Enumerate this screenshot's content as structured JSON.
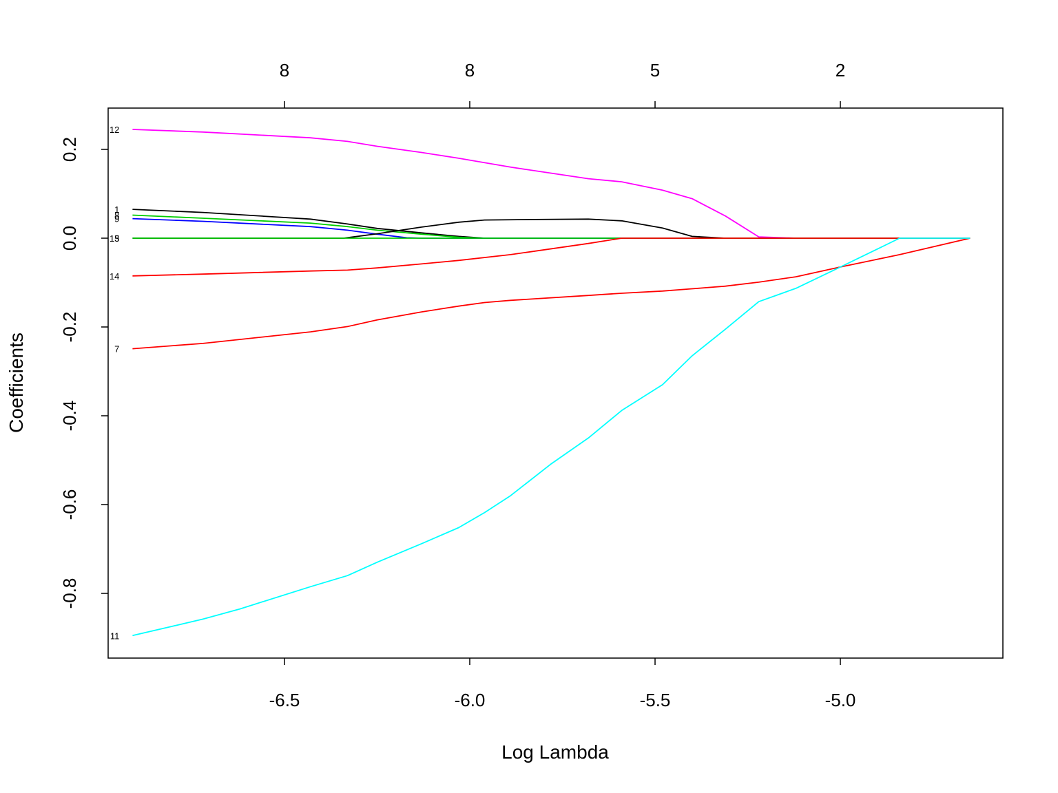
{
  "chart_data": {
    "type": "line",
    "title": "",
    "xlabel": "Log Lambda",
    "ylabel": "Coefficients",
    "xlim": [
      -6.93,
      -4.52
    ],
    "ylim": [
      -0.945,
      0.29
    ],
    "grid": false,
    "legend": "none",
    "xticks": [
      {
        "value": -6.5,
        "label": "-6.5"
      },
      {
        "value": -6.0,
        "label": "-6.0"
      },
      {
        "value": -5.5,
        "label": "-5.5"
      },
      {
        "value": -5.0,
        "label": "-5.0"
      }
    ],
    "yticks": [
      {
        "value": 0.2,
        "label": "0.2"
      },
      {
        "value": 0.0,
        "label": "0.0"
      },
      {
        "value": -0.2,
        "label": "-0.2"
      },
      {
        "value": -0.4,
        "label": "-0.4"
      },
      {
        "value": -0.6,
        "label": "-0.6"
      },
      {
        "value": -0.8,
        "label": "-0.8"
      }
    ],
    "top_ticks": [
      {
        "value": -6.5,
        "label": "8"
      },
      {
        "value": -6.0,
        "label": "8"
      },
      {
        "value": -5.5,
        "label": "5"
      },
      {
        "value": -5.0,
        "label": "2"
      }
    ],
    "series": [
      {
        "label": "12",
        "color": "#ff00ff",
        "x": [
          -6.91,
          -6.72,
          -6.43,
          -6.33,
          -6.25,
          -6.13,
          -6.03,
          -5.89,
          -5.68,
          -5.59,
          -5.48,
          -5.4,
          -5.31,
          -5.22,
          -5.12,
          -5.0,
          -4.84,
          -4.65
        ],
        "y": [
          0.245,
          0.239,
          0.226,
          0.218,
          0.207,
          0.193,
          0.18,
          0.16,
          0.134,
          0.127,
          0.108,
          0.089,
          0.05,
          0.003,
          0,
          0,
          0,
          0
        ]
      },
      {
        "label": "1",
        "color": "#000000",
        "x": [
          -6.91,
          -6.72,
          -6.43,
          -6.33,
          -6.25,
          -6.13,
          -6.03,
          -5.96,
          -5.89,
          -5.68,
          -5.59,
          -5.48,
          -5.4,
          -5.31,
          -4.65
        ],
        "y": [
          0.065,
          0.058,
          0.043,
          0.032,
          0.022,
          0.012,
          0.004,
          0,
          0,
          0,
          0,
          0,
          0,
          0,
          0
        ]
      },
      {
        "label": "8",
        "color": "#00cd00",
        "x": [
          -6.91,
          -6.72,
          -6.43,
          -6.33,
          -6.25,
          -6.13,
          -6.03,
          -5.96,
          -4.65
        ],
        "y": [
          0.052,
          0.045,
          0.034,
          0.026,
          0.018,
          0.009,
          0.002,
          0,
          0
        ]
      },
      {
        "label": "9",
        "color": "#0000ff",
        "x": [
          -6.91,
          -6.72,
          -6.43,
          -6.33,
          -6.25,
          -6.17,
          -6.13,
          -4.65
        ],
        "y": [
          0.044,
          0.038,
          0.026,
          0.018,
          0.009,
          0.001,
          0,
          0
        ]
      },
      {
        "label": "15",
        "color": "#000000",
        "x": [
          -6.91,
          -6.34,
          -6.25,
          -6.13,
          -6.03,
          -5.96,
          -5.83,
          -5.68,
          -5.59,
          -5.48,
          -5.4,
          -5.31,
          -4.65
        ],
        "y": [
          0,
          0,
          0.01,
          0.025,
          0.036,
          0.041,
          0.042,
          0.043,
          0.039,
          0.023,
          0.004,
          0,
          0
        ]
      },
      {
        "label": "3",
        "color": "#00cd00",
        "x": [
          -6.91,
          -4.65
        ],
        "y": [
          0,
          0
        ]
      },
      {
        "label": "14",
        "color": "#ff0000",
        "x": [
          -6.91,
          -6.72,
          -6.43,
          -6.33,
          -6.25,
          -6.13,
          -6.03,
          -5.89,
          -5.68,
          -5.59,
          -5.48,
          -4.65
        ],
        "y": [
          -0.085,
          -0.081,
          -0.074,
          -0.072,
          -0.067,
          -0.058,
          -0.05,
          -0.037,
          -0.012,
          0,
          0,
          0
        ]
      },
      {
        "label": "7",
        "color": "#ff0000",
        "x": [
          -6.91,
          -6.72,
          -6.43,
          -6.33,
          -6.25,
          -6.13,
          -6.03,
          -5.96,
          -5.89,
          -5.68,
          -5.59,
          -5.48,
          -5.4,
          -5.31,
          -5.22,
          -5.12,
          -5.0,
          -4.84,
          -4.65
        ],
        "y": [
          -0.249,
          -0.237,
          -0.211,
          -0.199,
          -0.184,
          -0.166,
          -0.153,
          -0.145,
          -0.14,
          -0.129,
          -0.124,
          -0.119,
          -0.114,
          -0.108,
          -0.099,
          -0.087,
          -0.065,
          -0.037,
          0
        ]
      },
      {
        "label": "11",
        "color": "#00ffff",
        "x": [
          -6.91,
          -6.72,
          -6.62,
          -6.43,
          -6.33,
          -6.25,
          -6.13,
          -6.03,
          -5.96,
          -5.89,
          -5.78,
          -5.68,
          -5.59,
          -5.48,
          -5.4,
          -5.31,
          -5.22,
          -5.12,
          -5.0,
          -4.84,
          -4.65
        ],
        "y": [
          -0.895,
          -0.858,
          -0.835,
          -0.785,
          -0.76,
          -0.73,
          -0.688,
          -0.652,
          -0.618,
          -0.58,
          -0.508,
          -0.45,
          -0.388,
          -0.33,
          -0.265,
          -0.205,
          -0.143,
          -0.113,
          -0.065,
          0,
          0
        ]
      }
    ]
  }
}
